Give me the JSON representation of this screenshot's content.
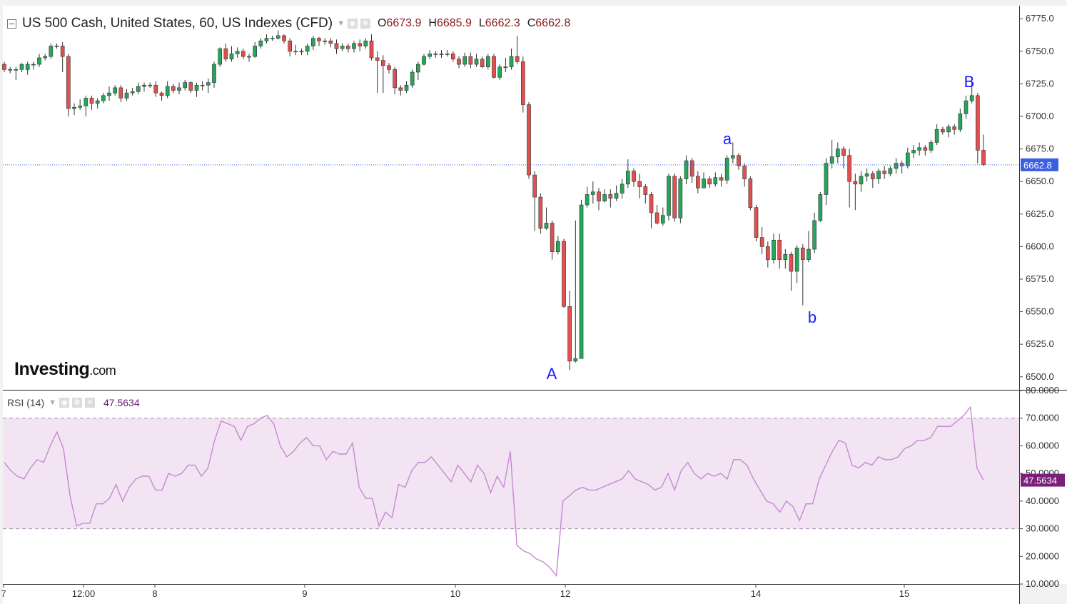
{
  "header": {
    "title": "US 500 Cash, United States, 60, US Indexes (CFD)",
    "o_label": "O",
    "o_value": "6673.9",
    "h_label": "H",
    "h_value": "6685.9",
    "l_label": "L",
    "l_value": "6662.3",
    "c_label": "C",
    "c_value": "6662.8"
  },
  "brand": {
    "name": "Investing",
    "suffix": ".com"
  },
  "rsi_panel": {
    "label": "RSI (14)",
    "value": "47.5634"
  },
  "colors": {
    "up": "#26a65b",
    "down": "#e0504f",
    "rsi_line": "#c58ad0",
    "rsi_band": "#f3e4f4",
    "price_tag": "#3b5fe0",
    "rsi_tag": "#7a1f7a",
    "wave_label": "#1a1aff"
  },
  "chart_data": [
    {
      "type": "candlestick",
      "title": "US 500 Cash, United States, 60, US Indexes (CFD)",
      "interval": "60",
      "y_range": [
        6490,
        6785
      ],
      "y_ticks": [
        6500,
        6525,
        6550,
        6575,
        6600,
        6625,
        6650,
        6675,
        6700,
        6725,
        6750,
        6775
      ],
      "x_labels": [
        "7",
        "12:00",
        "8",
        "9",
        "10",
        "12",
        "14",
        "15"
      ],
      "last_price": 6662.8,
      "wave_labels": [
        {
          "text": "A",
          "price": 6500
        },
        {
          "text": "a",
          "price": 6679
        },
        {
          "text": "b",
          "price": 6553
        },
        {
          "text": "B",
          "price": 6727
        }
      ],
      "candles": [
        [
          6740,
          6736,
          6742,
          6734
        ],
        [
          6736,
          6736,
          6738,
          6733
        ],
        [
          6736,
          6736,
          6738,
          6728
        ],
        [
          6736,
          6740,
          6741,
          6734
        ],
        [
          6736,
          6740,
          6742,
          6732
        ],
        [
          6740,
          6740,
          6742,
          6736
        ],
        [
          6740,
          6745,
          6748,
          6738
        ],
        [
          6745,
          6746,
          6748,
          6743
        ],
        [
          6746,
          6754,
          6756,
          6744
        ],
        [
          6754,
          6754,
          6756,
          6752
        ],
        [
          6754,
          6746,
          6757,
          6734
        ],
        [
          6746,
          6706,
          6748,
          6700
        ],
        [
          6706,
          6707,
          6710,
          6701
        ],
        [
          6707,
          6708,
          6713,
          6705
        ],
        [
          6708,
          6714,
          6716,
          6700
        ],
        [
          6714,
          6710,
          6716,
          6705
        ],
        [
          6710,
          6712,
          6714,
          6706
        ],
        [
          6712,
          6716,
          6718,
          6710
        ],
        [
          6716,
          6718,
          6723,
          6712
        ],
        [
          6718,
          6722,
          6724,
          6716
        ],
        [
          6722,
          6714,
          6724,
          6711
        ],
        [
          6714,
          6718,
          6721,
          6712
        ],
        [
          6718,
          6719,
          6722,
          6716
        ],
        [
          6719,
          6723,
          6726,
          6717
        ],
        [
          6723,
          6724,
          6726,
          6719
        ],
        [
          6724,
          6724,
          6726,
          6722
        ],
        [
          6724,
          6718,
          6727,
          6715
        ],
        [
          6718,
          6716,
          6719,
          6712
        ],
        [
          6716,
          6723,
          6727,
          6714
        ],
        [
          6723,
          6720,
          6725,
          6718
        ],
        [
          6720,
          6722,
          6726,
          6717
        ],
        [
          6722,
          6726,
          6728,
          6720
        ],
        [
          6726,
          6720,
          6727,
          6718
        ],
        [
          6720,
          6724,
          6726,
          6715
        ],
        [
          6724,
          6724,
          6727,
          6720
        ],
        [
          6724,
          6726,
          6729,
          6718
        ],
        [
          6726,
          6740,
          6742,
          6722
        ],
        [
          6740,
          6752,
          6753,
          6738
        ],
        [
          6752,
          6744,
          6756,
          6742
        ],
        [
          6744,
          6748,
          6754,
          6742
        ],
        [
          6748,
          6750,
          6753,
          6745
        ],
        [
          6750,
          6746,
          6752,
          6744
        ],
        [
          6746,
          6746,
          6748,
          6742
        ],
        [
          6746,
          6754,
          6757,
          6745
        ],
        [
          6754,
          6758,
          6760,
          6752
        ],
        [
          6758,
          6760,
          6763,
          6756
        ],
        [
          6760,
          6760,
          6762,
          6758
        ],
        [
          6760,
          6762,
          6766,
          6759
        ],
        [
          6762,
          6758,
          6763,
          6756
        ],
        [
          6758,
          6750,
          6760,
          6746
        ],
        [
          6750,
          6750,
          6755,
          6747
        ],
        [
          6750,
          6750,
          6752,
          6747
        ],
        [
          6750,
          6754,
          6756,
          6747
        ],
        [
          6754,
          6760,
          6762,
          6751
        ],
        [
          6760,
          6758,
          6761,
          6754
        ],
        [
          6758,
          6758,
          6760,
          6755
        ],
        [
          6758,
          6756,
          6760,
          6753
        ],
        [
          6756,
          6752,
          6759,
          6748
        ],
        [
          6752,
          6754,
          6756,
          6750
        ],
        [
          6754,
          6752,
          6756,
          6749
        ],
        [
          6752,
          6756,
          6758,
          6749
        ],
        [
          6756,
          6754,
          6759,
          6750
        ],
        [
          6754,
          6758,
          6760,
          6752
        ],
        [
          6758,
          6745,
          6763,
          6743
        ],
        [
          6745,
          6743,
          6750,
          6718
        ],
        [
          6743,
          6739,
          6747,
          6718
        ],
        [
          6739,
          6736,
          6741,
          6733
        ],
        [
          6736,
          6722,
          6738,
          6717
        ],
        [
          6722,
          6720,
          6724,
          6716
        ],
        [
          6720,
          6724,
          6727,
          6718
        ],
        [
          6724,
          6734,
          6736,
          6722
        ],
        [
          6734,
          6740,
          6742,
          6728
        ],
        [
          6740,
          6746,
          6748,
          6739
        ],
        [
          6746,
          6748,
          6751,
          6744
        ],
        [
          6748,
          6748,
          6750,
          6745
        ],
        [
          6748,
          6748,
          6751,
          6745
        ],
        [
          6748,
          6748,
          6751,
          6746
        ],
        [
          6748,
          6744,
          6750,
          6742
        ],
        [
          6744,
          6740,
          6746,
          6737
        ],
        [
          6740,
          6746,
          6749,
          6738
        ],
        [
          6746,
          6740,
          6749,
          6737
        ],
        [
          6740,
          6744,
          6748,
          6738
        ],
        [
          6744,
          6738,
          6746,
          6737
        ],
        [
          6738,
          6746,
          6748,
          6736
        ],
        [
          6746,
          6730,
          6748,
          6729
        ],
        [
          6730,
          6738,
          6740,
          6728
        ],
        [
          6738,
          6738,
          6745,
          6734
        ],
        [
          6738,
          6746,
          6752,
          6736
        ],
        [
          6746,
          6742,
          6762,
          6740
        ],
        [
          6742,
          6709,
          6746,
          6703
        ],
        [
          6709,
          6655,
          6711,
          6652
        ],
        [
          6655,
          6638,
          6658,
          6612
        ],
        [
          6638,
          6614,
          6641,
          6610
        ],
        [
          6614,
          6618,
          6630,
          6613
        ],
        [
          6618,
          6596,
          6620,
          6590
        ],
        [
          6596,
          6604,
          6608,
          6594
        ],
        [
          6604,
          6554,
          6606,
          6553
        ],
        [
          6554,
          6512,
          6566,
          6505
        ],
        [
          6512,
          6514,
          6620,
          6511
        ],
        [
          6514,
          6632,
          6636,
          6612
        ],
        [
          6632,
          6640,
          6646,
          6630
        ],
        [
          6640,
          6642,
          6650,
          6633
        ],
        [
          6642,
          6635,
          6645,
          6628
        ],
        [
          6635,
          6640,
          6644,
          6634
        ],
        [
          6640,
          6637,
          6644,
          6630
        ],
        [
          6637,
          6641,
          6647,
          6635
        ],
        [
          6641,
          6648,
          6652,
          6637
        ],
        [
          6648,
          6658,
          6667,
          6645
        ],
        [
          6658,
          6650,
          6660,
          6646
        ],
        [
          6650,
          6646,
          6656,
          6637
        ],
        [
          6646,
          6640,
          6648,
          6633
        ],
        [
          6640,
          6626,
          6642,
          6614
        ],
        [
          6626,
          6618,
          6632,
          6617
        ],
        [
          6618,
          6624,
          6630,
          6616
        ],
        [
          6624,
          6654,
          6656,
          6620
        ],
        [
          6654,
          6622,
          6656,
          6619
        ],
        [
          6622,
          6652,
          6654,
          6618
        ],
        [
          6652,
          6666,
          6670,
          6648
        ],
        [
          6666,
          6654,
          6668,
          6649
        ],
        [
          6654,
          6645,
          6658,
          6641
        ],
        [
          6645,
          6652,
          6657,
          6645
        ],
        [
          6652,
          6648,
          6654,
          6645
        ],
        [
          6648,
          6653,
          6657,
          6646
        ],
        [
          6653,
          6651,
          6656,
          6646
        ],
        [
          6651,
          6668,
          6670,
          6648
        ],
        [
          6668,
          6670,
          6680,
          6664
        ],
        [
          6670,
          6662,
          6672,
          6659
        ],
        [
          6662,
          6652,
          6664,
          6646
        ],
        [
          6652,
          6630,
          6654,
          6628
        ],
        [
          6630,
          6607,
          6632,
          6604
        ],
        [
          6607,
          6600,
          6615,
          6594
        ],
        [
          6600,
          6590,
          6604,
          6584
        ],
        [
          6590,
          6605,
          6610,
          6587
        ],
        [
          6605,
          6590,
          6610,
          6583
        ],
        [
          6590,
          6594,
          6598,
          6583
        ],
        [
          6594,
          6581,
          6596,
          6566
        ],
        [
          6581,
          6599,
          6601,
          6572
        ],
        [
          6599,
          6590,
          6602,
          6555
        ],
        [
          6590,
          6598,
          6612,
          6588
        ],
        [
          6598,
          6620,
          6626,
          6595
        ],
        [
          6620,
          6640,
          6642,
          6619
        ],
        [
          6640,
          6664,
          6668,
          6632
        ],
        [
          6664,
          6669,
          6682,
          6660
        ],
        [
          6669,
          6675,
          6680,
          6664
        ],
        [
          6675,
          6670,
          6677,
          6660
        ],
        [
          6670,
          6650,
          6675,
          6630
        ],
        [
          6650,
          6648,
          6656,
          6628
        ],
        [
          6648,
          6654,
          6658,
          6642
        ],
        [
          6654,
          6656,
          6660,
          6650
        ],
        [
          6656,
          6652,
          6658,
          6645
        ],
        [
          6652,
          6658,
          6660,
          6648
        ],
        [
          6658,
          6656,
          6662,
          6652
        ],
        [
          6656,
          6660,
          6662,
          6654
        ],
        [
          6660,
          6664,
          6668,
          6656
        ],
        [
          6664,
          6662,
          6666,
          6656
        ],
        [
          6662,
          6672,
          6676,
          6660
        ],
        [
          6672,
          6674,
          6678,
          6668
        ],
        [
          6674,
          6676,
          6680,
          6670
        ],
        [
          6676,
          6674,
          6678,
          6670
        ],
        [
          6674,
          6680,
          6682,
          6672
        ],
        [
          6680,
          6690,
          6694,
          6678
        ],
        [
          6690,
          6688,
          6692,
          6686
        ],
        [
          6688,
          6692,
          6694,
          6684
        ],
        [
          6692,
          6690,
          6694,
          6686
        ],
        [
          6690,
          6702,
          6706,
          6688
        ],
        [
          6702,
          6712,
          6716,
          6698
        ],
        [
          6712,
          6716,
          6727,
          6710
        ],
        [
          6716,
          6674,
          6718,
          6664
        ],
        [
          6674,
          6663,
          6686,
          6662
        ]
      ]
    },
    {
      "type": "line",
      "title": "RSI (14)",
      "y_range": [
        10,
        80
      ],
      "y_ticks": [
        10,
        20,
        30,
        40,
        50,
        60,
        70,
        80
      ],
      "overbought": 70,
      "oversold": 30,
      "last_value": 47.5634,
      "values": [
        54,
        51,
        49,
        48,
        52,
        55,
        54,
        60,
        65,
        59,
        42,
        31,
        32,
        32,
        39,
        39,
        41,
        46,
        40,
        45,
        48,
        49,
        49,
        44,
        44,
        50,
        49,
        50,
        53,
        53,
        49,
        52,
        62,
        69,
        68,
        67,
        62,
        67,
        68,
        70,
        71,
        68,
        60,
        56,
        58,
        61,
        63,
        60,
        60,
        55,
        58,
        57,
        57,
        61,
        45,
        41,
        41,
        31,
        36,
        34,
        46,
        45,
        51,
        54,
        54,
        56,
        53,
        50,
        47,
        53,
        50,
        47,
        53,
        50,
        43,
        49,
        45,
        58,
        24,
        22,
        21,
        19,
        18,
        16,
        13,
        40,
        42,
        44,
        45,
        44,
        44,
        45,
        46,
        47,
        48,
        51,
        48,
        47,
        46,
        44,
        45,
        50,
        44,
        51,
        54,
        50,
        48,
        50,
        49,
        50,
        48,
        55,
        55,
        53,
        48,
        44,
        40,
        39,
        36,
        40,
        38,
        33,
        39,
        39,
        48,
        53,
        58,
        62,
        61,
        53,
        52,
        54,
        53,
        56,
        55,
        55,
        56,
        59,
        60,
        62,
        62,
        63,
        67,
        67,
        67,
        69,
        71,
        74,
        52,
        47.56
      ]
    }
  ]
}
